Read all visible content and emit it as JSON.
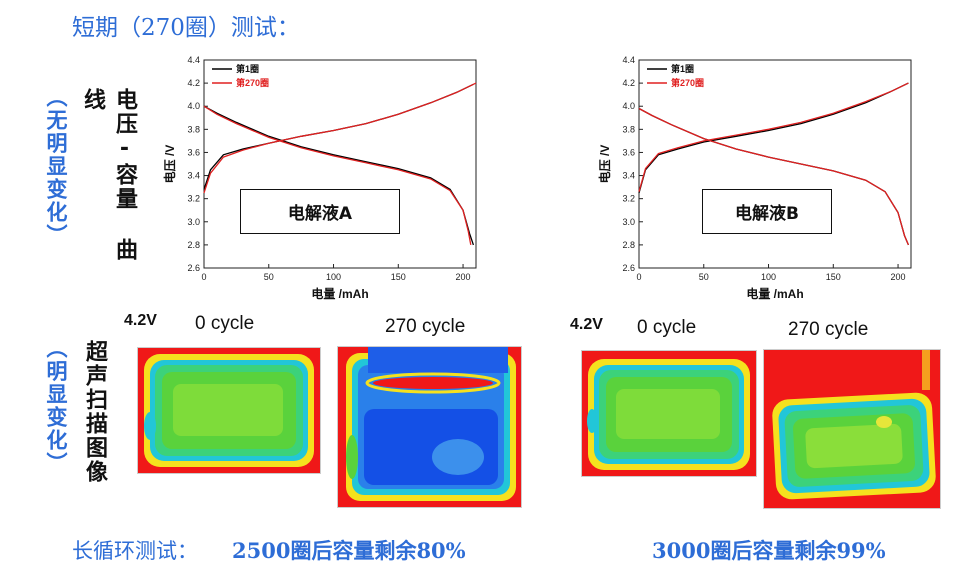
{
  "title": "短期（270圈）测试：",
  "left_side": {
    "curve_label": "电压-容量 曲线",
    "curve_note": "（无明显变化）",
    "scan_label": "超声扫描图像",
    "scan_note": "（明显变化）"
  },
  "chart_data": [
    {
      "type": "line",
      "panel_label": "电解液A",
      "xlabel": "电量 /mAh",
      "ylabel": "电压 /V",
      "xlim": [
        0,
        210
      ],
      "ylim": [
        2.6,
        4.4
      ],
      "xticks": [
        0,
        50,
        100,
        150,
        200
      ],
      "yticks": [
        2.6,
        2.8,
        3.0,
        3.2,
        3.4,
        3.6,
        3.8,
        4.0,
        4.2,
        4.4
      ],
      "legend_position": "top-left",
      "series": [
        {
          "name": "第1圈",
          "color": "#000000",
          "charge": [
            [
              0,
              3.28
            ],
            [
              5,
              3.45
            ],
            [
              15,
              3.58
            ],
            [
              30,
              3.63
            ],
            [
              50,
              3.68
            ],
            [
              75,
              3.74
            ],
            [
              100,
              3.79
            ],
            [
              125,
              3.85
            ],
            [
              150,
              3.93
            ],
            [
              175,
              4.03
            ],
            [
              195,
              4.12
            ],
            [
              208,
              4.19
            ]
          ],
          "discharge": [
            [
              0,
              4.0
            ],
            [
              10,
              3.94
            ],
            [
              25,
              3.86
            ],
            [
              50,
              3.74
            ],
            [
              75,
              3.65
            ],
            [
              100,
              3.58
            ],
            [
              125,
              3.52
            ],
            [
              150,
              3.46
            ],
            [
              175,
              3.38
            ],
            [
              190,
              3.28
            ],
            [
              200,
              3.1
            ],
            [
              205,
              2.9
            ],
            [
              208,
              2.8
            ]
          ]
        },
        {
          "name": "第270圈",
          "color": "#e02020",
          "charge": [
            [
              0,
              3.25
            ],
            [
              5,
              3.42
            ],
            [
              15,
              3.56
            ],
            [
              30,
              3.62
            ],
            [
              50,
              3.68
            ],
            [
              75,
              3.74
            ],
            [
              100,
              3.79
            ],
            [
              125,
              3.85
            ],
            [
              150,
              3.93
            ],
            [
              175,
              4.03
            ],
            [
              195,
              4.12
            ],
            [
              210,
              4.2
            ]
          ],
          "discharge": [
            [
              0,
              4.0
            ],
            [
              10,
              3.93
            ],
            [
              25,
              3.85
            ],
            [
              50,
              3.73
            ],
            [
              75,
              3.64
            ],
            [
              100,
              3.57
            ],
            [
              125,
              3.51
            ],
            [
              150,
              3.45
            ],
            [
              175,
              3.37
            ],
            [
              190,
              3.27
            ],
            [
              200,
              3.1
            ],
            [
              204,
              2.92
            ],
            [
              206,
              2.8
            ]
          ]
        }
      ]
    },
    {
      "type": "line",
      "panel_label": "电解液B",
      "xlabel": "电量 /mAh",
      "ylabel": "电压 /V",
      "xlim": [
        0,
        210
      ],
      "ylim": [
        2.6,
        4.4
      ],
      "xticks": [
        0,
        50,
        100,
        150,
        200
      ],
      "yticks": [
        2.6,
        2.8,
        3.0,
        3.2,
        3.4,
        3.6,
        3.8,
        4.0,
        4.2,
        4.4
      ],
      "legend_position": "top-left",
      "series": [
        {
          "name": "第1圈",
          "color": "#000000",
          "charge": [
            [
              0,
              3.25
            ],
            [
              5,
              3.45
            ],
            [
              15,
              3.58
            ],
            [
              30,
              3.63
            ],
            [
              50,
              3.69
            ],
            [
              75,
              3.74
            ],
            [
              100,
              3.79
            ],
            [
              125,
              3.85
            ],
            [
              150,
              3.93
            ],
            [
              175,
              4.03
            ],
            [
              195,
              4.13
            ],
            [
              208,
              4.2
            ]
          ],
          "discharge": [
            [
              0,
              3.98
            ],
            [
              10,
              3.92
            ],
            [
              25,
              3.84
            ],
            [
              50,
              3.72
            ],
            [
              75,
              3.63
            ],
            [
              100,
              3.56
            ],
            [
              125,
              3.5
            ],
            [
              150,
              3.44
            ],
            [
              175,
              3.36
            ],
            [
              190,
              3.26
            ],
            [
              200,
              3.08
            ],
            [
              205,
              2.88
            ],
            [
              208,
              2.8
            ]
          ]
        },
        {
          "name": "第270圈",
          "color": "#e02020",
          "charge": [
            [
              0,
              3.26
            ],
            [
              5,
              3.46
            ],
            [
              15,
              3.59
            ],
            [
              30,
              3.64
            ],
            [
              50,
              3.7
            ],
            [
              75,
              3.75
            ],
            [
              100,
              3.8
            ],
            [
              125,
              3.86
            ],
            [
              150,
              3.94
            ],
            [
              175,
              4.04
            ],
            [
              195,
              4.13
            ],
            [
              208,
              4.2
            ]
          ],
          "discharge": [
            [
              0,
              3.98
            ],
            [
              10,
              3.92
            ],
            [
              25,
              3.84
            ],
            [
              50,
              3.72
            ],
            [
              75,
              3.63
            ],
            [
              100,
              3.56
            ],
            [
              125,
              3.5
            ],
            [
              150,
              3.44
            ],
            [
              175,
              3.36
            ],
            [
              190,
              3.26
            ],
            [
              200,
              3.08
            ],
            [
              205,
              2.88
            ],
            [
              208,
              2.8
            ]
          ]
        }
      ]
    }
  ],
  "scans": {
    "left_voltage": "4.2V",
    "right_voltage": "4.2V",
    "left_0": "0 cycle",
    "left_270": "270 cycle",
    "right_0": "0 cycle",
    "right_270": "270 cycle"
  },
  "bottom": {
    "lead": "长循环测试：",
    "left_result": "2500圈后容量剩余80%",
    "right_result": "3000圈后容量剩余99%"
  },
  "colors": {
    "accent": "#2e6dd6",
    "map_red": "#f01818",
    "map_green": "#5ad23c",
    "map_blue": "#1450e6"
  }
}
